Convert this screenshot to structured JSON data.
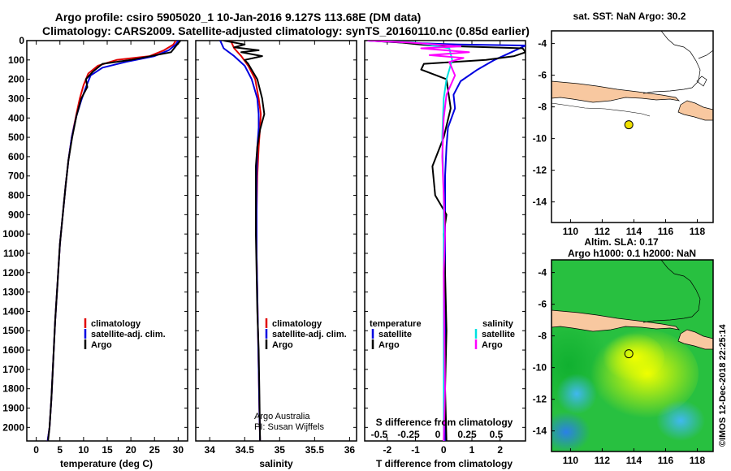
{
  "title_line1": "Argo profile: csiro 5905020_1 10-Jan-2016 9.127S 113.68E (DM data)",
  "title_line2": "Climatology: CARS2009. Satellite-adjusted climatology: synTS_20160110.nc (0.85d earlier)",
  "credit": "©IMOS 12-Dec-2018 22:25:14",
  "colors": {
    "climatology": "#e00000",
    "satellite": "#0000e0",
    "argo": "#000000",
    "sal_sat": "#00e0e0",
    "sal_argo": "#ff00ff",
    "land": "#f8c8a0"
  },
  "chart_data": [
    {
      "type": "line",
      "xlabel": "temperature (deg C)",
      "xlim": [
        -2,
        32
      ],
      "xticks": [
        0,
        5,
        10,
        15,
        20,
        25,
        30
      ],
      "ylim": [
        0,
        2070
      ],
      "yticks": [
        0,
        100,
        200,
        300,
        400,
        500,
        600,
        700,
        800,
        900,
        1000,
        1100,
        1200,
        1300,
        1400,
        1500,
        1600,
        1700,
        1800,
        1900,
        2000
      ],
      "legend": [
        "climatology",
        "satellite-adj. clim.",
        "Argo"
      ],
      "series": [
        {
          "name": "climatology",
          "color": "#e00000",
          "x": [
            29.5,
            29,
            27,
            24,
            17,
            13,
            11,
            10,
            9.2,
            8.5,
            7.5,
            6.8,
            6.2,
            5.6,
            5.0,
            4.5,
            4.0,
            3.6,
            3.2,
            2.8,
            2.4
          ],
          "y": [
            0,
            20,
            50,
            80,
            100,
            130,
            170,
            230,
            300,
            380,
            500,
            620,
            750,
            900,
            1050,
            1250,
            1450,
            1650,
            1850,
            2000,
            2070
          ]
        },
        {
          "name": "satellite-adj. clim.",
          "color": "#0000e0",
          "x": [
            30,
            29.5,
            28,
            25,
            19,
            14,
            11.5,
            10.5,
            9.5,
            8.5,
            7.5,
            6.8,
            6.2,
            5.6,
            5.0,
            4.5,
            4.0,
            3.6,
            3.2,
            2.8,
            2.4
          ],
          "y": [
            0,
            20,
            50,
            80,
            110,
            140,
            180,
            240,
            310,
            390,
            500,
            620,
            750,
            900,
            1050,
            1250,
            1450,
            1650,
            1850,
            2000,
            2070
          ]
        },
        {
          "name": "Argo",
          "color": "#000000",
          "x": [
            30.5,
            29.8,
            28.5,
            20,
            14,
            12,
            10.5,
            10.8,
            9.5,
            8.5,
            7.6,
            6.8,
            6.2,
            5.6,
            5.0,
            4.5,
            4.0,
            3.6,
            3.2,
            2.8,
            2.5
          ],
          "y": [
            0,
            20,
            60,
            100,
            120,
            160,
            200,
            240,
            300,
            390,
            500,
            620,
            750,
            900,
            1050,
            1250,
            1450,
            1650,
            1850,
            2000,
            2070
          ]
        }
      ]
    },
    {
      "type": "line",
      "xlabel": "salinity",
      "xlim": [
        33.8,
        36.1
      ],
      "xticks": [
        34,
        34.5,
        35,
        35.5,
        36
      ],
      "ylim": [
        0,
        2070
      ],
      "legend": [
        "climatology",
        "satellite-adj. clim.",
        "Argo"
      ],
      "annotations": [
        "Argo Australia",
        "PI: Susan Wijffels"
      ],
      "series": [
        {
          "name": "climatology",
          "color": "#e00000",
          "x": [
            34.3,
            34.35,
            34.45,
            34.55,
            34.65,
            34.7,
            34.73,
            34.72,
            34.7,
            34.68,
            34.67,
            34.67,
            34.68,
            34.69,
            34.7,
            34.71,
            34.72
          ],
          "y": [
            0,
            40,
            80,
            130,
            200,
            300,
            380,
            450,
            550,
            700,
            900,
            1100,
            1300,
            1500,
            1700,
            1900,
            2070
          ]
        },
        {
          "name": "satellite-adj. clim.",
          "color": "#0000e0",
          "x": [
            34.15,
            34.2,
            34.35,
            34.5,
            34.6,
            34.68,
            34.7,
            34.7,
            34.68,
            34.67,
            34.67,
            34.67,
            34.68,
            34.69,
            34.7,
            34.71,
            34.72
          ],
          "y": [
            0,
            40,
            80,
            130,
            200,
            300,
            380,
            450,
            550,
            700,
            900,
            1100,
            1300,
            1500,
            1700,
            1900,
            2070
          ]
        },
        {
          "name": "Argo",
          "color": "#000000",
          "x": [
            34.2,
            34.5,
            34.35,
            34.7,
            34.45,
            34.75,
            34.5,
            34.55,
            34.68,
            34.75,
            34.78,
            34.72,
            34.68,
            34.66,
            34.66,
            34.66,
            34.67,
            34.68,
            34.7,
            34.71,
            34.72
          ],
          "y": [
            0,
            20,
            35,
            50,
            60,
            80,
            100,
            120,
            200,
            300,
            380,
            460,
            550,
            650,
            800,
            1000,
            1200,
            1400,
            1600,
            1800,
            2070
          ]
        }
      ]
    },
    {
      "type": "line",
      "xlabel": "T difference from climatology",
      "x2label": "S difference from climatology",
      "xlim": [
        -2.8,
        2.9
      ],
      "xticks": [
        -2,
        -1,
        0,
        1,
        2
      ],
      "x2ticks": [
        "-0.5",
        "-0.25",
        "0",
        "0.25",
        "0.5"
      ],
      "ylim": [
        0,
        2070
      ],
      "legend_left_title": "temperature",
      "legend_right_title": "salinity",
      "legend_left": [
        "satellite",
        "Argo"
      ],
      "legend_right": [
        "satellite",
        "Argo"
      ],
      "series": [
        {
          "name": "T satellite",
          "color": "#0000e0",
          "x": [
            -2.7,
            -1.5,
            0.5,
            2.9,
            2.4,
            1.8,
            1.2,
            0.6,
            0.35,
            0.4,
            0.15,
            0.1,
            0.05,
            0.05,
            0.05,
            0.05,
            0.05,
            0.05,
            0.05,
            0.05
          ],
          "y": [
            0,
            10,
            20,
            25,
            60,
            100,
            150,
            210,
            280,
            350,
            450,
            550,
            700,
            900,
            1100,
            1300,
            1500,
            1700,
            1900,
            2070
          ]
        },
        {
          "name": "T Argo",
          "color": "#000000",
          "x": [
            -2.7,
            -1.5,
            -0.5,
            2.8,
            2.9,
            2.5,
            1.5,
            -0.7,
            -0.8,
            0.1,
            0.25,
            0.0,
            -0.4,
            -0.3,
            0.1,
            0.0,
            0.05,
            0.1,
            0.05,
            0.1
          ],
          "y": [
            0,
            10,
            25,
            40,
            60,
            80,
            100,
            120,
            150,
            200,
            350,
            500,
            650,
            800,
            900,
            1000,
            1200,
            1500,
            1800,
            2070
          ]
        },
        {
          "name": "S satellite",
          "color": "#00e0e0",
          "x": [
            -2.7,
            -1.0,
            0.2,
            0.3,
            0.1,
            0.0,
            -0.05,
            0.0,
            0.0,
            0.0,
            0.0,
            0.0
          ],
          "y": [
            0,
            10,
            40,
            100,
            200,
            300,
            500,
            800,
            1100,
            1400,
            1700,
            2070
          ]
        },
        {
          "name": "S Argo",
          "color": "#ff00ff",
          "x": [
            -2.7,
            -1.2,
            0.6,
            -0.8,
            0.9,
            -0.5,
            0.7,
            0.2,
            0.4,
            0.1,
            0.0,
            -0.05,
            0.0,
            0.05,
            0.0,
            0.02,
            0.05,
            0.0
          ],
          "y": [
            0,
            10,
            30,
            40,
            60,
            75,
            90,
            110,
            180,
            280,
            400,
            600,
            800,
            1000,
            1200,
            1500,
            1800,
            2070
          ]
        }
      ]
    },
    {
      "type": "map",
      "title": "sat. SST: NaN Argo: 30.2",
      "xticks": [
        110,
        112,
        114,
        116,
        118
      ],
      "yticks": [
        -4,
        -6,
        -8,
        -10,
        -12,
        -14
      ],
      "xlim": [
        108.8,
        119
      ],
      "ylim": [
        -15.3,
        -3.2
      ],
      "marker": {
        "lon": 113.68,
        "lat": -9.127
      }
    },
    {
      "type": "heatmap",
      "title_line1": "Altim. SLA: 0.17",
      "title_line2": "Argo h1000: 0.1 h2000: NaN",
      "xticks": [
        110,
        112,
        114,
        116,
        118
      ],
      "yticks": [
        -4,
        -6,
        -8,
        -10,
        -12,
        -14
      ],
      "xlim": [
        108.8,
        119
      ],
      "ylim": [
        -15.3,
        -3.2
      ],
      "marker": {
        "lon": 113.68,
        "lat": -9.127
      }
    }
  ]
}
